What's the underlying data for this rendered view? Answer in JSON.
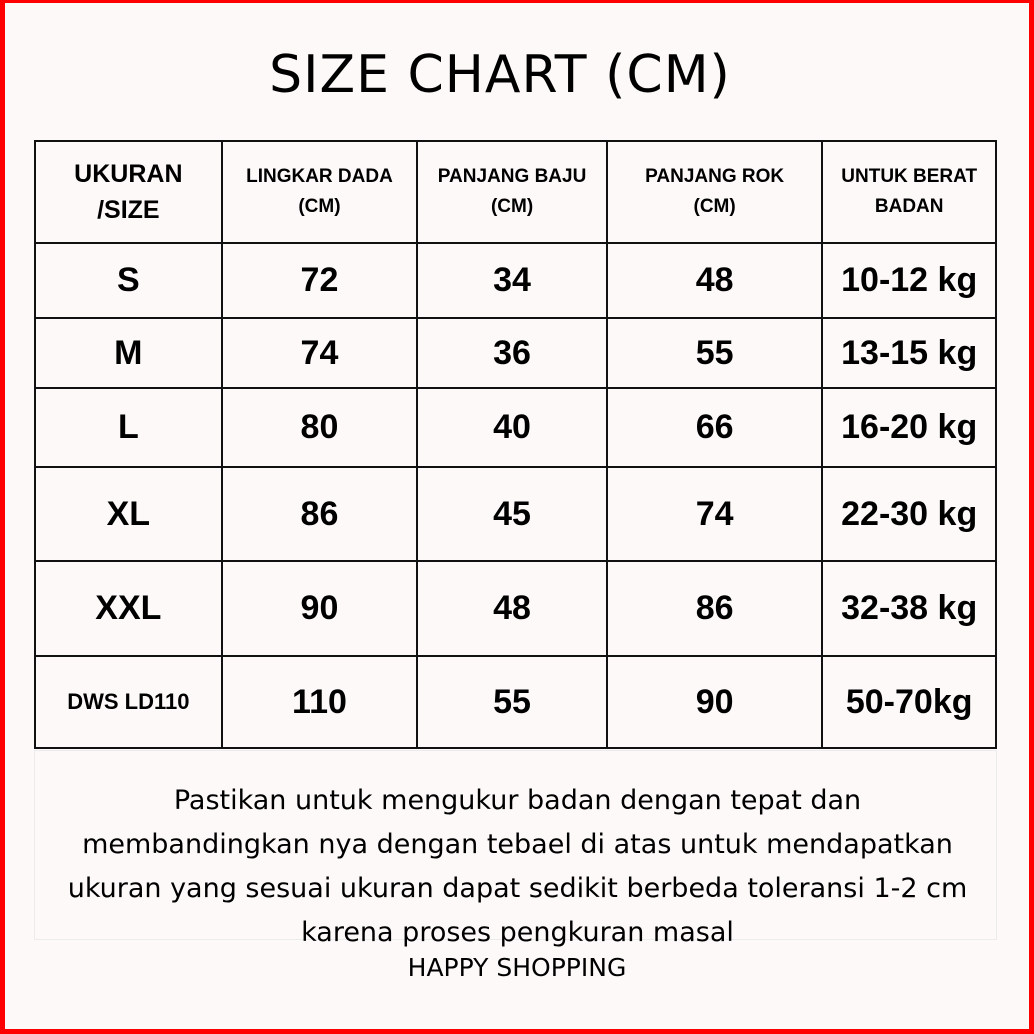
{
  "title": "SIZE CHART (CM)",
  "table": {
    "headers": [
      [
        "UKURAN",
        "/SIZE"
      ],
      [
        "LINGKAR DADA",
        "(CM)"
      ],
      [
        "PANJANG BAJU",
        "(CM)"
      ],
      [
        "PANJANG ROK",
        "(CM)"
      ],
      [
        "UNTUK BERAT",
        "BADAN"
      ]
    ],
    "rows": [
      [
        "S",
        "72",
        "34",
        "48",
        "10-12 kg"
      ],
      [
        "M",
        "74",
        "36",
        "55",
        "13-15 kg"
      ],
      [
        "L",
        "80",
        "40",
        "66",
        "16-20 kg"
      ],
      [
        "XL",
        "86",
        "45",
        "74",
        "22-30 kg"
      ],
      [
        "XXL",
        "90",
        "48",
        "86",
        "32-38 kg"
      ],
      [
        "DWS LD110",
        "110",
        "55",
        "90",
        "50-70kg"
      ]
    ]
  },
  "note": [
    "Pastikan untuk mengukur badan dengan tepat dan",
    "membandingkan nya dengan tebael di atas untuk mendapatkan",
    "ukuran yang sesuai ukuran dapat sedikit berbeda toleransi 1-2 cm",
    "karena proses pengkuran masal"
  ],
  "footer": "HAPPY SHOPPING",
  "colors": {
    "border": "#ff0000",
    "background": "#fdf9f8"
  }
}
